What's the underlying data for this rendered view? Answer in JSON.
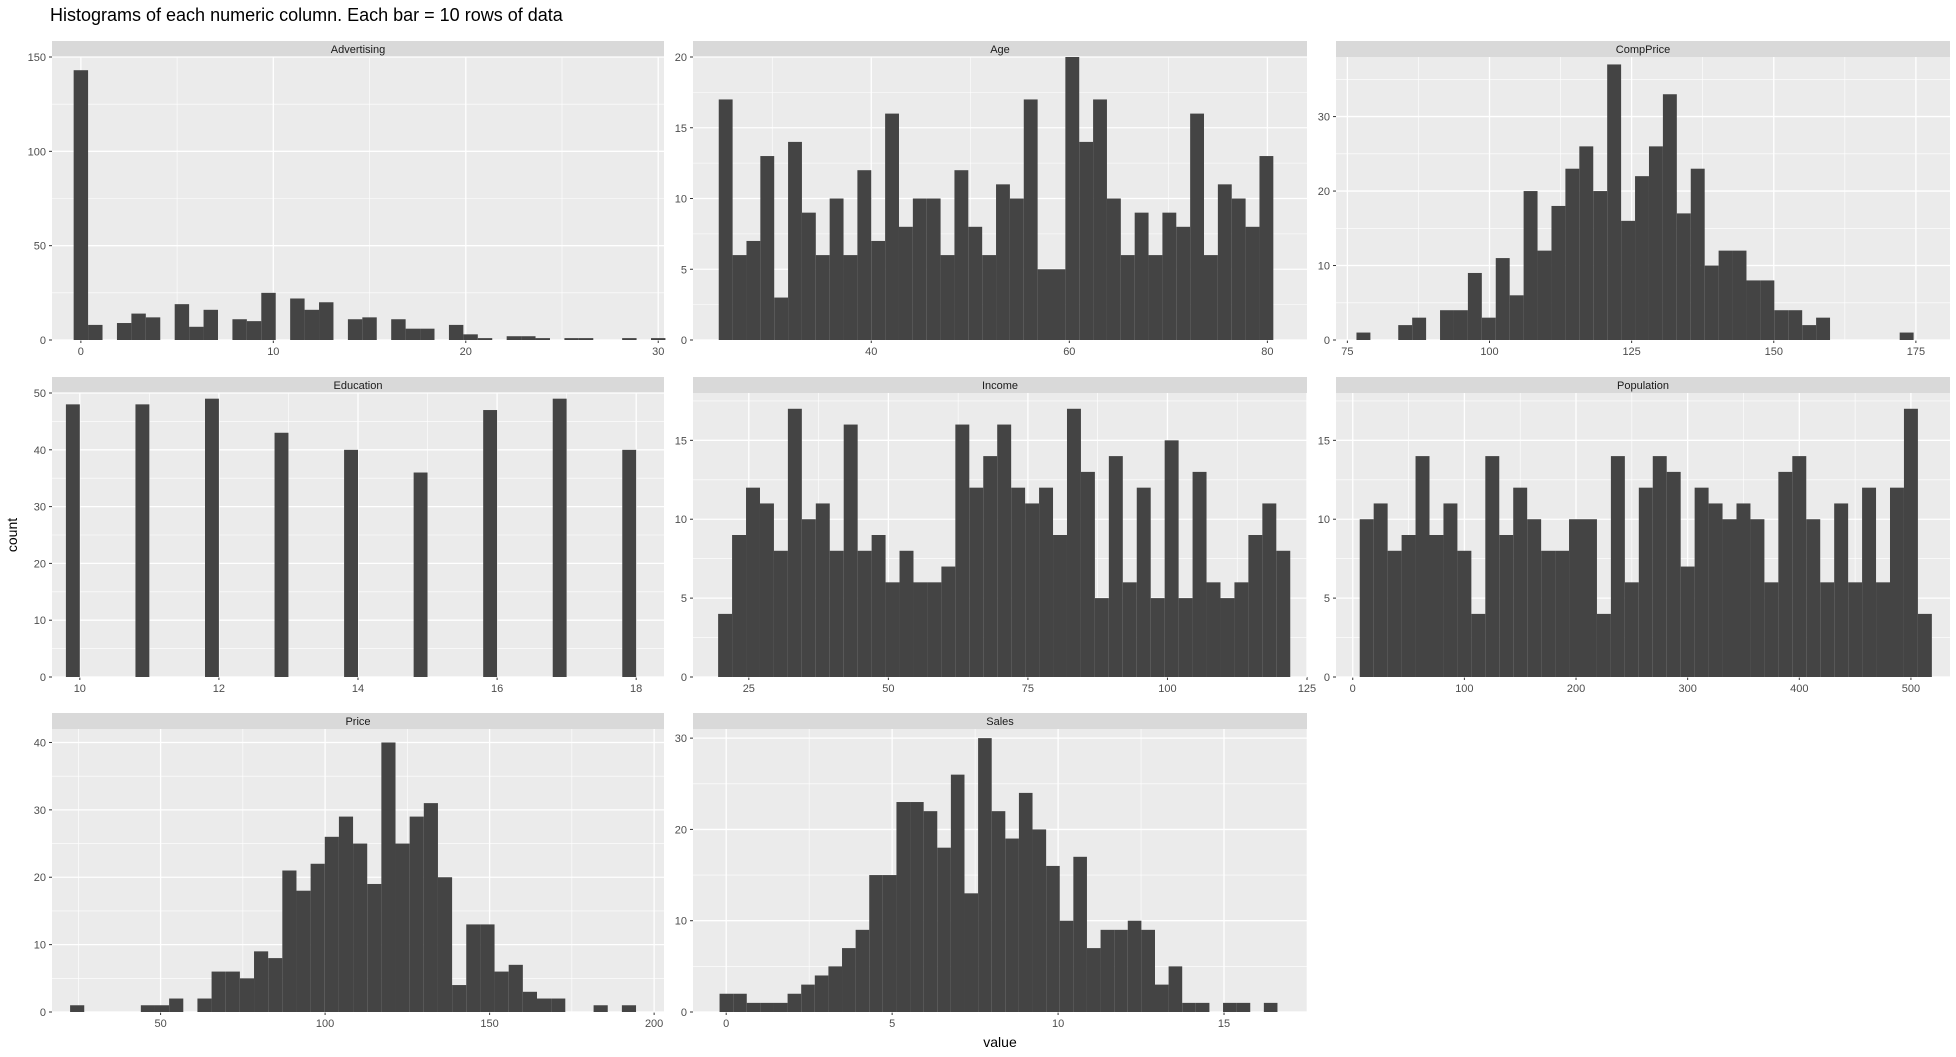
{
  "title": "Histograms of each numeric column. Each bar = 10 rows of data",
  "x_axis_label": "value",
  "y_axis_label": "count",
  "colors": {
    "bar": "#444444",
    "panel_bg": "#EBEBEB",
    "strip_bg": "#D9D9D9",
    "grid": "#FFFFFF"
  },
  "chart_data": [
    {
      "type": "bar",
      "facet": "Advertising",
      "grid": true,
      "xlim": [
        -1.5,
        30.3
      ],
      "ylim": [
        0,
        150
      ],
      "xticks": [
        0,
        10,
        20,
        30
      ],
      "yticks": [
        0,
        50,
        100,
        150
      ],
      "bin_start": -0.375,
      "bin_width": 0.75,
      "values": [
        143,
        8,
        0,
        9,
        14,
        12,
        0,
        19,
        7,
        16,
        0,
        11,
        10,
        25,
        0,
        22,
        16,
        20,
        0,
        11,
        12,
        0,
        11,
        6,
        6,
        0,
        8,
        3,
        1,
        0,
        2,
        2,
        1,
        0,
        1,
        1,
        0,
        0,
        1,
        0,
        1
      ]
    },
    {
      "type": "bar",
      "facet": "Age",
      "grid": true,
      "xlim": [
        22,
        84
      ],
      "ylim": [
        0,
        20
      ],
      "xticks": [
        40,
        60,
        80
      ],
      "yticks": [
        0,
        5,
        10,
        15,
        20
      ],
      "bin_start": 24.6,
      "bin_width": 1.4,
      "values": [
        17,
        6,
        7,
        13,
        3,
        14,
        9,
        6,
        10,
        6,
        12,
        7,
        16,
        8,
        10,
        10,
        6,
        12,
        8,
        6,
        11,
        10,
        17,
        5,
        5,
        20,
        14,
        17,
        10,
        6,
        9,
        6,
        9,
        8,
        16,
        6,
        11,
        10,
        8,
        13
      ]
    },
    {
      "type": "bar",
      "facet": "CompPrice",
      "grid": true,
      "xlim": [
        73,
        181
      ],
      "ylim": [
        0,
        38
      ],
      "xticks": [
        75,
        100,
        125,
        150,
        175
      ],
      "yticks": [
        0,
        10,
        20,
        30
      ],
      "bin_start": 76.6,
      "bin_width": 2.45,
      "values": [
        1,
        0,
        0,
        2,
        3,
        0,
        4,
        4,
        9,
        3,
        11,
        6,
        20,
        12,
        18,
        23,
        26,
        20,
        37,
        16,
        22,
        26,
        33,
        17,
        23,
        10,
        12,
        12,
        8,
        8,
        4,
        4,
        2,
        3,
        0,
        0,
        0,
        0,
        0,
        1
      ]
    },
    {
      "type": "bar",
      "facet": "Education",
      "grid": true,
      "xlim": [
        9.6,
        18.4
      ],
      "ylim": [
        0,
        50
      ],
      "xticks": [
        10,
        12,
        14,
        16,
        18
      ],
      "yticks": [
        0,
        10,
        20,
        30,
        40,
        50
      ],
      "bin_start": 9.8,
      "bin_width": 0.2,
      "values": [
        48,
        0,
        0,
        0,
        0,
        48,
        0,
        0,
        0,
        0,
        49,
        0,
        0,
        0,
        0,
        43,
        0,
        0,
        0,
        0,
        40,
        0,
        0,
        0,
        0,
        36,
        0,
        0,
        0,
        0,
        47,
        0,
        0,
        0,
        0,
        49,
        0,
        0,
        0,
        0,
        40
      ]
    },
    {
      "type": "bar",
      "facet": "Income",
      "grid": true,
      "xlim": [
        15,
        125
      ],
      "ylim": [
        0,
        18
      ],
      "xticks": [
        25,
        50,
        75,
        100,
        125
      ],
      "yticks": [
        0,
        5,
        10,
        15
      ],
      "bin_start": 19.5,
      "bin_width": 2.5,
      "values": [
        4,
        9,
        12,
        11,
        8,
        17,
        10,
        11,
        8,
        16,
        8,
        9,
        6,
        8,
        6,
        6,
        7,
        16,
        12,
        14,
        16,
        12,
        11,
        12,
        9,
        17,
        13,
        5,
        14,
        6,
        12,
        5,
        15,
        5,
        13,
        6,
        5,
        6,
        9,
        11,
        8
      ]
    },
    {
      "type": "bar",
      "facet": "Population",
      "grid": true,
      "xlim": [
        -15,
        535
      ],
      "ylim": [
        0,
        18
      ],
      "xticks": [
        0,
        100,
        200,
        300,
        400,
        500
      ],
      "yticks": [
        0,
        5,
        10,
        15
      ],
      "bin_start": 6.25,
      "bin_width": 12.5,
      "values": [
        10,
        11,
        8,
        9,
        14,
        9,
        11,
        8,
        4,
        14,
        9,
        12,
        10,
        8,
        8,
        10,
        10,
        4,
        14,
        6,
        12,
        14,
        13,
        7,
        12,
        11,
        10,
        11,
        10,
        6,
        13,
        14,
        10,
        6,
        11,
        6,
        12,
        6,
        12,
        17,
        4
      ]
    },
    {
      "type": "bar",
      "facet": "Price",
      "grid": true,
      "xlim": [
        17,
        203
      ],
      "ylim": [
        0,
        42
      ],
      "xticks": [
        50,
        100,
        150,
        200
      ],
      "yticks": [
        0,
        10,
        20,
        30,
        40
      ],
      "bin_start": 22.5,
      "bin_width": 4.3,
      "values": [
        1,
        0,
        0,
        0,
        0,
        1,
        1,
        2,
        0,
        2,
        6,
        6,
        5,
        9,
        8,
        21,
        18,
        22,
        26,
        29,
        25,
        19,
        40,
        25,
        29,
        31,
        20,
        4,
        13,
        13,
        6,
        7,
        3,
        2,
        2,
        0,
        0,
        1,
        0,
        1
      ]
    },
    {
      "type": "bar",
      "facet": "Sales",
      "grid": true,
      "xlim": [
        -1,
        17.5
      ],
      "ylim": [
        0,
        31
      ],
      "xticks": [
        0,
        5,
        10,
        15
      ],
      "yticks": [
        0,
        10,
        20,
        30
      ],
      "bin_start": -0.2,
      "bin_width": 0.41,
      "values": [
        2,
        2,
        1,
        1,
        1,
        2,
        3,
        4,
        5,
        7,
        9,
        15,
        15,
        23,
        23,
        22,
        18,
        26,
        13,
        30,
        22,
        19,
        24,
        20,
        16,
        10,
        17,
        7,
        9,
        9,
        10,
        9,
        3,
        5,
        1,
        1,
        0,
        1,
        1,
        0,
        1
      ]
    }
  ]
}
